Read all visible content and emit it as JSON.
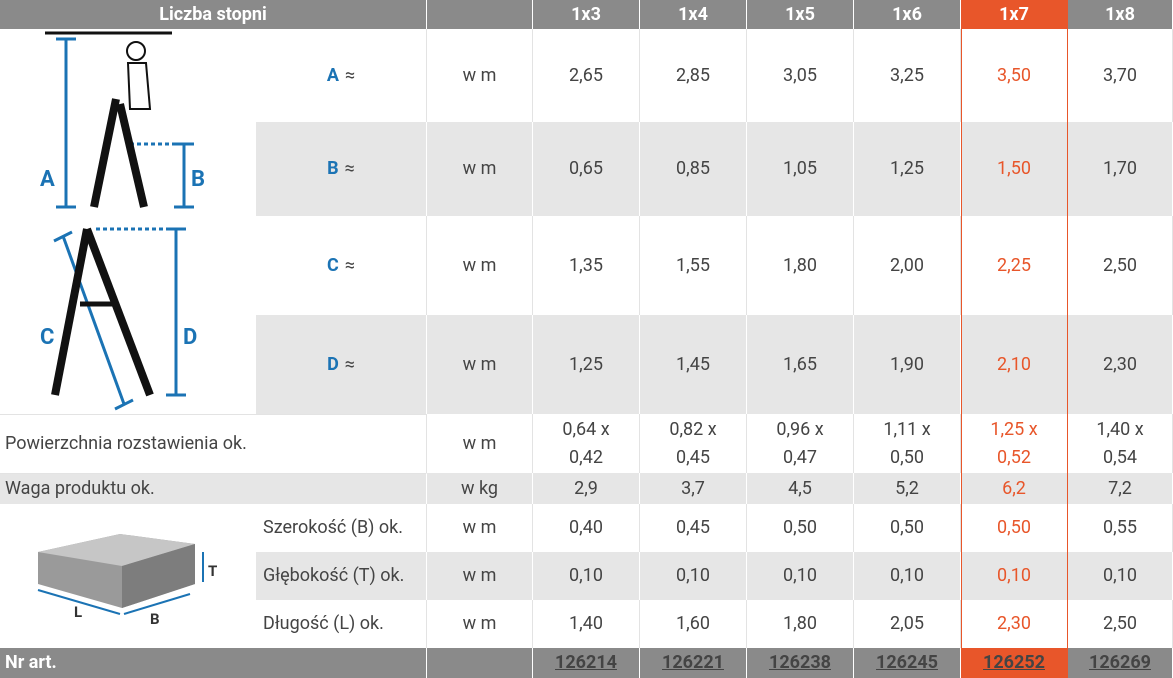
{
  "header": {
    "label": "Liczba stopni",
    "columns": [
      "1x3",
      "1x4",
      "1x5",
      "1x6",
      "1x7",
      "1x8"
    ]
  },
  "highlight_column": 4,
  "figures": {
    "ladder_labels": [
      "A",
      "B",
      "C",
      "D"
    ],
    "box_labels": [
      "L",
      "B",
      "T"
    ]
  },
  "rows": [
    {
      "label": {
        "letter": "A",
        "suffix": "≈"
      },
      "unit": "w m",
      "values": [
        "2,65",
        "2,85",
        "3,05",
        "3,25",
        "3,50",
        "3,70"
      ]
    },
    {
      "label": {
        "letter": "B",
        "suffix": "≈"
      },
      "unit": "w m",
      "values": [
        "0,65",
        "0,85",
        "1,05",
        "1,25",
        "1,50",
        "1,70"
      ]
    },
    {
      "label": {
        "letter": "C",
        "suffix": "≈"
      },
      "unit": "w m",
      "values": [
        "1,35",
        "1,55",
        "1,80",
        "2,00",
        "2,25",
        "2,50"
      ]
    },
    {
      "label": {
        "letter": "D",
        "suffix": "≈"
      },
      "unit": "w m",
      "values": [
        "1,25",
        "1,45",
        "1,65",
        "1,90",
        "2,10",
        "2,30"
      ]
    },
    {
      "label": "Powierzchnia rozstawienia ok.",
      "unit": "w m",
      "values": [
        [
          "0,64 x",
          "0,42"
        ],
        [
          "0,82 x",
          "0,45"
        ],
        [
          "0,96 x",
          "0,47"
        ],
        [
          "1,11 x",
          "0,50"
        ],
        [
          "1,25 x",
          "0,52"
        ],
        [
          "1,40 x",
          "0,54"
        ]
      ]
    },
    {
      "label": "Waga produktu ok.",
      "unit": "w kg",
      "values": [
        "2,9",
        "3,7",
        "4,5",
        "5,2",
        "6,2",
        "7,2"
      ]
    },
    {
      "label": "Szerokość (B) ok.",
      "unit": "w m",
      "values": [
        "0,40",
        "0,45",
        "0,50",
        "0,50",
        "0,50",
        "0,55"
      ]
    },
    {
      "label": "Głębokość (T) ok.",
      "unit": "w m",
      "values": [
        "0,10",
        "0,10",
        "0,10",
        "0,10",
        "0,10",
        "0,10"
      ]
    },
    {
      "label": "Długość (L) ok.",
      "unit": "w m",
      "values": [
        "1,40",
        "1,60",
        "1,80",
        "2,05",
        "2,30",
        "2,50"
      ]
    }
  ],
  "footer": {
    "label": "Nr art.",
    "values": [
      "126214",
      "126221",
      "126238",
      "126245",
      "126252",
      "126269"
    ]
  }
}
